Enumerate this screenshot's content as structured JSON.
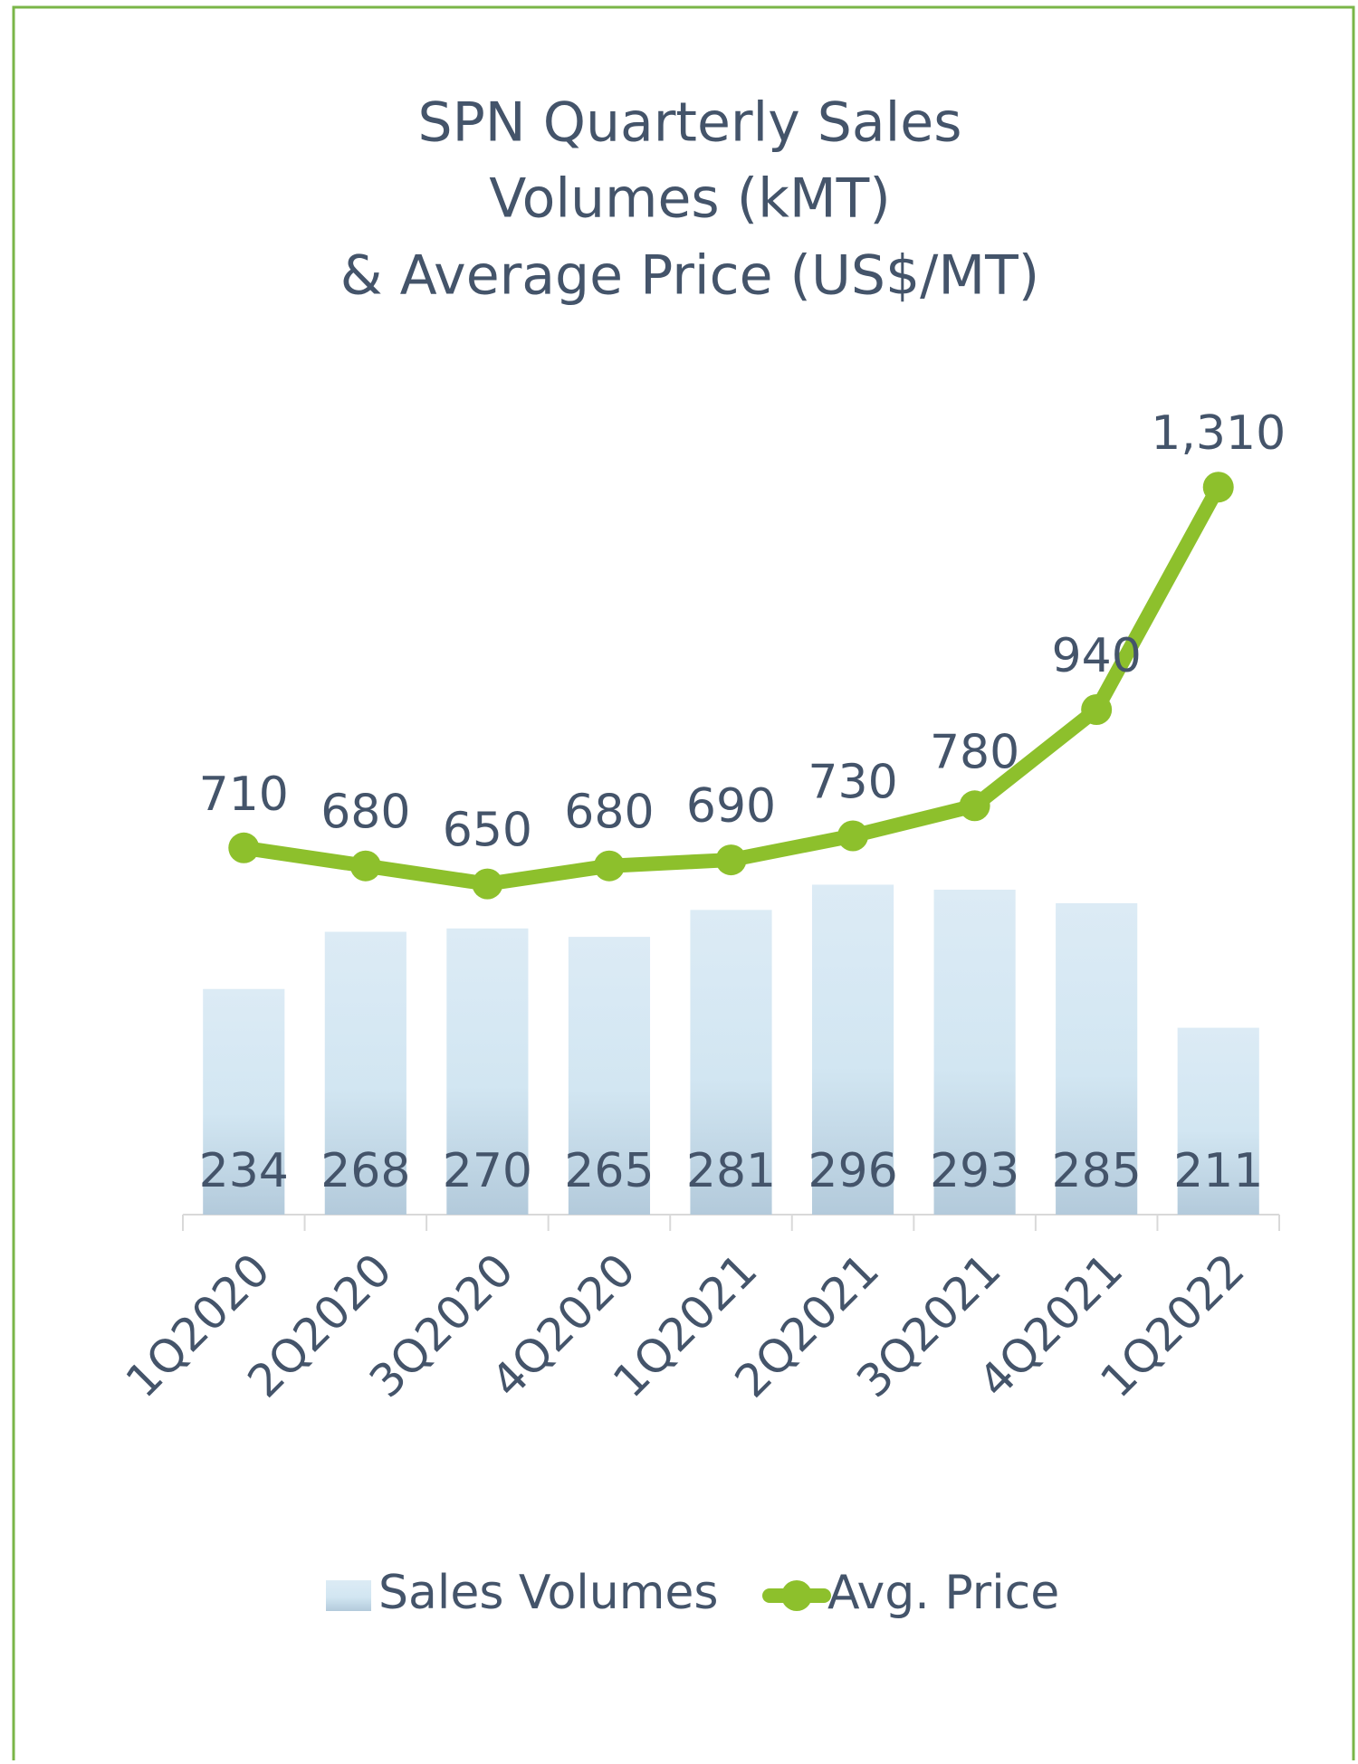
{
  "chart_data": {
    "type": "bar-line",
    "title": [
      "SPN Quarterly Sales",
      "Volumes (kMT)",
      "& Average Price (US$/MT)"
    ],
    "categories": [
      "1Q2020",
      "2Q2020",
      "3Q2020",
      "4Q2020",
      "1Q2021",
      "2Q2021",
      "3Q2021",
      "4Q2021",
      "1Q2022"
    ],
    "series": [
      {
        "name": "Sales Volumes",
        "type": "bar",
        "color": "#cfe2ef",
        "values": [
          234,
          268,
          270,
          265,
          281,
          296,
          293,
          285,
          211
        ]
      },
      {
        "name": "Avg. Price",
        "type": "line",
        "axis": "y2",
        "color": "#8dc02c",
        "values": [
          710,
          680,
          650,
          680,
          690,
          730,
          780,
          940,
          1310
        ],
        "value_labels": [
          "710",
          "680",
          "650",
          "680",
          "690",
          "730",
          "780",
          "940",
          "1,310"
        ]
      }
    ],
    "ylim": [
      100,
      600
    ],
    "y2lim": [
      100,
      1500
    ],
    "legend": "bottom"
  }
}
